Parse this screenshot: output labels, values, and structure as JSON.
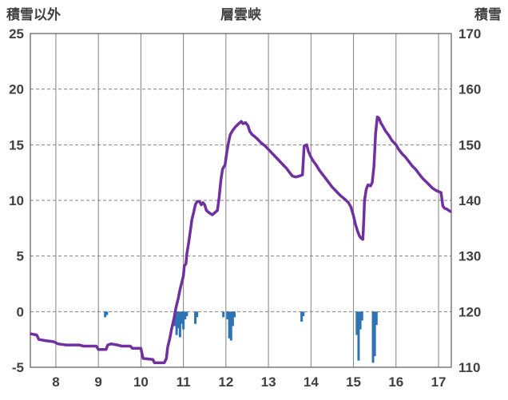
{
  "header": {
    "left_axis_title": "積雪以外",
    "title": "層雲峡",
    "right_axis_title": "積雪"
  },
  "chart_data": {
    "type": "line",
    "title": "層雲峡",
    "left_axis": {
      "label": "積雪以外",
      "min": -5,
      "max": 25,
      "ticks": [
        25,
        20,
        15,
        10,
        5,
        0,
        -5
      ]
    },
    "right_axis": {
      "label": "積雪",
      "min": 110,
      "max": 170,
      "ticks": [
        170,
        160,
        150,
        140,
        130,
        120,
        110
      ]
    },
    "x_axis": {
      "min": 7.4,
      "max": 17.3,
      "ticks": [
        8,
        9,
        10,
        11,
        12,
        13,
        14,
        15,
        16,
        17
      ]
    },
    "grid": {
      "horizontal": "dashed",
      "vertical": "solid"
    },
    "colors": {
      "line": "#7030A0",
      "bar": "#2E74B5",
      "grid": "#808080",
      "border": "#595959",
      "text": "#404040"
    },
    "series": [
      {
        "name": "積雪",
        "type": "line",
        "color": "#7030A0",
        "points": [
          [
            7.42,
            -2.0
          ],
          [
            7.55,
            -2.1
          ],
          [
            7.6,
            -2.5
          ],
          [
            7.75,
            -2.6
          ],
          [
            7.95,
            -2.7
          ],
          [
            8.05,
            -2.9
          ],
          [
            8.25,
            -3.0
          ],
          [
            8.55,
            -3.0
          ],
          [
            8.65,
            -3.1
          ],
          [
            8.95,
            -3.1
          ],
          [
            9.0,
            -3.4
          ],
          [
            9.18,
            -3.4
          ],
          [
            9.22,
            -3.0
          ],
          [
            9.3,
            -2.9
          ],
          [
            9.45,
            -3.0
          ],
          [
            9.55,
            -3.1
          ],
          [
            9.75,
            -3.1
          ],
          [
            9.8,
            -3.3
          ],
          [
            10.0,
            -3.3
          ],
          [
            10.05,
            -4.2
          ],
          [
            10.28,
            -4.3
          ],
          [
            10.32,
            -4.6
          ],
          [
            10.55,
            -4.6
          ],
          [
            10.6,
            -4.2
          ],
          [
            10.63,
            -3.2
          ],
          [
            10.68,
            -2.4
          ],
          [
            10.72,
            -1.6
          ],
          [
            10.78,
            -0.6
          ],
          [
            10.82,
            0.3
          ],
          [
            10.88,
            1.2
          ],
          [
            10.92,
            2.0
          ],
          [
            10.96,
            2.6
          ],
          [
            11.0,
            3.2
          ],
          [
            11.02,
            4.1
          ],
          [
            11.06,
            4.3
          ],
          [
            11.08,
            5.2
          ],
          [
            11.12,
            6.1
          ],
          [
            11.16,
            7.2
          ],
          [
            11.2,
            8.3
          ],
          [
            11.24,
            8.9
          ],
          [
            11.28,
            9.6
          ],
          [
            11.32,
            9.9
          ],
          [
            11.38,
            9.9
          ],
          [
            11.42,
            9.6
          ],
          [
            11.46,
            9.8
          ],
          [
            11.5,
            9.6
          ],
          [
            11.54,
            9.1
          ],
          [
            11.6,
            8.9
          ],
          [
            11.68,
            8.7
          ],
          [
            11.74,
            8.9
          ],
          [
            11.8,
            9.1
          ],
          [
            11.84,
            10.3
          ],
          [
            11.88,
            11.8
          ],
          [
            11.92,
            12.8
          ],
          [
            11.98,
            13.2
          ],
          [
            12.02,
            14.3
          ],
          [
            12.06,
            15.2
          ],
          [
            12.1,
            15.9
          ],
          [
            12.16,
            16.3
          ],
          [
            12.22,
            16.6
          ],
          [
            12.3,
            16.9
          ],
          [
            12.36,
            17.1
          ],
          [
            12.4,
            16.9
          ],
          [
            12.46,
            17.0
          ],
          [
            12.52,
            16.7
          ],
          [
            12.56,
            16.2
          ],
          [
            12.62,
            15.9
          ],
          [
            12.72,
            15.6
          ],
          [
            12.82,
            15.2
          ],
          [
            12.92,
            14.9
          ],
          [
            13.02,
            14.5
          ],
          [
            13.12,
            14.1
          ],
          [
            13.22,
            13.7
          ],
          [
            13.32,
            13.3
          ],
          [
            13.42,
            12.9
          ],
          [
            13.5,
            12.5
          ],
          [
            13.56,
            12.2
          ],
          [
            13.64,
            12.1
          ],
          [
            13.74,
            12.2
          ],
          [
            13.8,
            12.3
          ],
          [
            13.84,
            14.9
          ],
          [
            13.9,
            15.0
          ],
          [
            13.94,
            14.4
          ],
          [
            14.0,
            13.9
          ],
          [
            14.06,
            13.5
          ],
          [
            14.12,
            13.2
          ],
          [
            14.2,
            12.7
          ],
          [
            14.3,
            12.2
          ],
          [
            14.4,
            11.7
          ],
          [
            14.5,
            11.2
          ],
          [
            14.6,
            10.8
          ],
          [
            14.7,
            10.4
          ],
          [
            14.8,
            10.1
          ],
          [
            14.88,
            9.8
          ],
          [
            14.94,
            9.4
          ],
          [
            15.0,
            8.6
          ],
          [
            15.05,
            7.8
          ],
          [
            15.1,
            7.2
          ],
          [
            15.14,
            6.8
          ],
          [
            15.18,
            6.6
          ],
          [
            15.22,
            6.5
          ],
          [
            15.24,
            8.0
          ],
          [
            15.26,
            10.0
          ],
          [
            15.3,
            11.0
          ],
          [
            15.34,
            11.4
          ],
          [
            15.4,
            11.3
          ],
          [
            15.44,
            11.6
          ],
          [
            15.48,
            13.0
          ],
          [
            15.5,
            14.5
          ],
          [
            15.52,
            16.0
          ],
          [
            15.56,
            17.5
          ],
          [
            15.6,
            17.4
          ],
          [
            15.64,
            17.0
          ],
          [
            15.7,
            16.6
          ],
          [
            15.76,
            16.2
          ],
          [
            15.84,
            15.8
          ],
          [
            15.9,
            15.4
          ],
          [
            16.0,
            15.0
          ],
          [
            16.06,
            14.6
          ],
          [
            16.14,
            14.2
          ],
          [
            16.22,
            13.9
          ],
          [
            16.3,
            13.5
          ],
          [
            16.38,
            13.1
          ],
          [
            16.46,
            12.8
          ],
          [
            16.54,
            12.4
          ],
          [
            16.62,
            12.0
          ],
          [
            16.7,
            11.7
          ],
          [
            16.78,
            11.4
          ],
          [
            16.86,
            11.1
          ],
          [
            16.94,
            10.9
          ],
          [
            17.0,
            10.8
          ],
          [
            17.06,
            10.7
          ],
          [
            17.1,
            9.5
          ],
          [
            17.14,
            9.3
          ],
          [
            17.2,
            9.2
          ],
          [
            17.28,
            9.0
          ]
        ]
      },
      {
        "name": "積雪以外",
        "type": "bar",
        "color": "#2E74B5",
        "points": [
          [
            9.16,
            -0.5
          ],
          [
            9.2,
            -0.3
          ],
          [
            10.8,
            -1.3
          ],
          [
            10.84,
            -2.1
          ],
          [
            10.88,
            -1.5
          ],
          [
            10.92,
            -2.3
          ],
          [
            10.96,
            -1.1
          ],
          [
            11.0,
            -1.6
          ],
          [
            11.04,
            -0.7
          ],
          [
            11.08,
            -0.4
          ],
          [
            11.28,
            -1.1
          ],
          [
            11.32,
            -0.5
          ],
          [
            11.94,
            -0.5
          ],
          [
            12.04,
            -0.7
          ],
          [
            12.08,
            -2.4
          ],
          [
            12.12,
            -2.6
          ],
          [
            12.16,
            -1.3
          ],
          [
            12.2,
            -0.5
          ],
          [
            13.78,
            -0.9
          ],
          [
            13.82,
            -0.4
          ],
          [
            15.08,
            -2.1
          ],
          [
            15.12,
            -4.4
          ],
          [
            15.16,
            -1.6
          ],
          [
            15.2,
            -0.8
          ],
          [
            15.46,
            -4.6
          ],
          [
            15.5,
            -4.0
          ],
          [
            15.54,
            -1.2
          ]
        ]
      }
    ]
  }
}
